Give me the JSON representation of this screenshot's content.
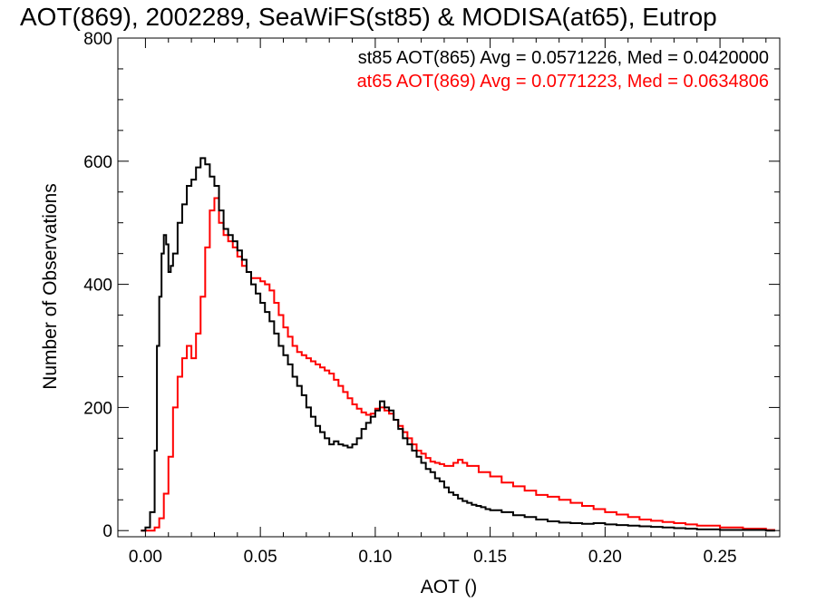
{
  "chart_data": {
    "type": "line",
    "title": "AOT(869), 2002289, SeaWiFS(st85) & MODISA(at65), Eutrop",
    "xlabel": "AOT ()",
    "ylabel": "Number of Observations",
    "xlim": [
      -0.012,
      0.276
    ],
    "ylim": [
      -10,
      800
    ],
    "x_ticks": [
      0.0,
      0.05,
      0.1,
      0.15,
      0.2,
      0.25
    ],
    "x_tick_labels": [
      "0.00",
      "0.05",
      "0.10",
      "0.15",
      "0.20",
      "0.25"
    ],
    "y_ticks": [
      0,
      200,
      400,
      600,
      800
    ],
    "y_tick_labels": [
      "0",
      "200",
      "400",
      "600",
      "800"
    ],
    "step_style": "histogram",
    "grid": false,
    "series": [
      {
        "name": "st85",
        "color": "#000000",
        "annotation": "st85 AOT(865) Avg = 0.0571226, Med = 0.0420000",
        "x": [
          -0.002,
          0.0,
          0.002,
          0.004,
          0.005,
          0.006,
          0.007,
          0.008,
          0.009,
          0.01,
          0.011,
          0.012,
          0.014,
          0.016,
          0.018,
          0.02,
          0.022,
          0.024,
          0.026,
          0.028,
          0.03,
          0.032,
          0.034,
          0.036,
          0.038,
          0.04,
          0.042,
          0.044,
          0.046,
          0.048,
          0.05,
          0.052,
          0.054,
          0.056,
          0.058,
          0.06,
          0.062,
          0.064,
          0.066,
          0.068,
          0.07,
          0.072,
          0.074,
          0.076,
          0.078,
          0.08,
          0.082,
          0.084,
          0.086,
          0.088,
          0.09,
          0.092,
          0.094,
          0.096,
          0.098,
          0.1,
          0.102,
          0.104,
          0.106,
          0.108,
          0.11,
          0.112,
          0.114,
          0.116,
          0.118,
          0.12,
          0.122,
          0.124,
          0.126,
          0.128,
          0.13,
          0.132,
          0.134,
          0.136,
          0.138,
          0.14,
          0.142,
          0.144,
          0.146,
          0.148,
          0.15,
          0.155,
          0.16,
          0.165,
          0.17,
          0.175,
          0.18,
          0.185,
          0.19,
          0.195,
          0.2,
          0.205,
          0.21,
          0.215,
          0.22,
          0.225,
          0.23,
          0.235,
          0.24,
          0.25,
          0.26,
          0.27
        ],
        "y": [
          0,
          5,
          30,
          130,
          300,
          380,
          450,
          480,
          465,
          420,
          430,
          450,
          500,
          530,
          560,
          570,
          590,
          605,
          595,
          575,
          560,
          520,
          490,
          480,
          470,
          455,
          440,
          420,
          400,
          385,
          370,
          355,
          340,
          320,
          300,
          285,
          270,
          250,
          235,
          220,
          200,
          185,
          170,
          160,
          150,
          140,
          145,
          140,
          138,
          135,
          140,
          150,
          165,
          175,
          185,
          195,
          210,
          200,
          195,
          180,
          165,
          150,
          140,
          130,
          120,
          110,
          100,
          95,
          85,
          80,
          70,
          62,
          58,
          52,
          48,
          45,
          42,
          40,
          38,
          35,
          33,
          30,
          25,
          22,
          18,
          15,
          13,
          12,
          11,
          12,
          10,
          9,
          8,
          7,
          6,
          5,
          4,
          3,
          2,
          1,
          1,
          0
        ]
      },
      {
        "name": "at65",
        "color": "#ff0000",
        "annotation": "at65 AOT(869) Avg = 0.0771223, Med = 0.0634806",
        "x": [
          -0.002,
          0.004,
          0.006,
          0.008,
          0.01,
          0.012,
          0.014,
          0.016,
          0.018,
          0.02,
          0.022,
          0.024,
          0.026,
          0.028,
          0.03,
          0.032,
          0.034,
          0.036,
          0.038,
          0.04,
          0.042,
          0.044,
          0.046,
          0.048,
          0.05,
          0.052,
          0.054,
          0.056,
          0.058,
          0.06,
          0.062,
          0.064,
          0.066,
          0.068,
          0.07,
          0.072,
          0.074,
          0.076,
          0.078,
          0.08,
          0.082,
          0.084,
          0.086,
          0.088,
          0.09,
          0.092,
          0.094,
          0.096,
          0.098,
          0.1,
          0.102,
          0.104,
          0.106,
          0.108,
          0.11,
          0.112,
          0.114,
          0.116,
          0.118,
          0.12,
          0.122,
          0.124,
          0.126,
          0.128,
          0.13,
          0.132,
          0.134,
          0.136,
          0.138,
          0.14,
          0.145,
          0.15,
          0.155,
          0.16,
          0.165,
          0.17,
          0.175,
          0.18,
          0.185,
          0.19,
          0.195,
          0.2,
          0.205,
          0.21,
          0.215,
          0.22,
          0.225,
          0.23,
          0.235,
          0.24,
          0.25,
          0.26,
          0.27
        ],
        "y": [
          0,
          5,
          20,
          60,
          120,
          200,
          250,
          280,
          300,
          280,
          320,
          380,
          460,
          520,
          540,
          500,
          480,
          470,
          460,
          445,
          430,
          420,
          410,
          410,
          405,
          400,
          390,
          370,
          350,
          330,
          315,
          300,
          290,
          285,
          280,
          275,
          270,
          265,
          260,
          255,
          245,
          235,
          225,
          215,
          205,
          198,
          192,
          188,
          190,
          198,
          200,
          195,
          190,
          180,
          170,
          160,
          150,
          140,
          130,
          125,
          118,
          112,
          110,
          108,
          105,
          105,
          110,
          115,
          110,
          105,
          95,
          88,
          78,
          72,
          65,
          58,
          55,
          50,
          45,
          40,
          35,
          30,
          26,
          22,
          18,
          16,
          14,
          12,
          10,
          8,
          5,
          3,
          1
        ]
      }
    ]
  }
}
